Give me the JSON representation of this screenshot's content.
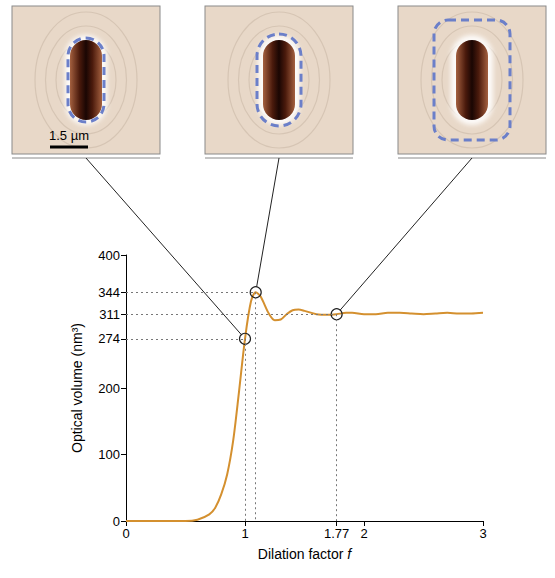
{
  "chart_data": {
    "type": "line",
    "x_label": "Dilation factor f",
    "y_label": "Optical volume (nm³)",
    "x": [
      0,
      0.5,
      0.6,
      0.7,
      0.75,
      0.8,
      0.85,
      0.9,
      0.95,
      1.0,
      1.05,
      1.09,
      1.13,
      1.2,
      1.25,
      1.3,
      1.35,
      1.4,
      1.45,
      1.5,
      1.6,
      1.7,
      1.77,
      1.85,
      1.9,
      2.0,
      2.1,
      2.2,
      2.3,
      2.4,
      2.5,
      2.6,
      2.7,
      2.8,
      2.9,
      3.0
    ],
    "values": [
      0,
      0,
      2,
      10,
      20,
      40,
      70,
      120,
      195,
      274,
      330,
      344,
      338,
      312,
      302,
      303,
      311,
      317,
      318,
      316,
      311,
      310,
      311,
      313,
      313,
      311,
      311,
      313,
      313,
      312,
      311,
      312,
      313,
      312,
      312,
      313
    ],
    "color": "#d4902f",
    "xlim": [
      0,
      3
    ],
    "xticks": [
      0,
      1,
      1.77,
      2,
      3
    ],
    "ylim": [
      0,
      400
    ],
    "yticks": [
      0,
      100,
      200,
      274,
      311,
      344,
      400
    ],
    "grid": false,
    "highlights": {
      "x": [
        1.0,
        1.09,
        1.77
      ],
      "values": [
        274,
        344,
        311
      ]
    },
    "scale_bar_label": "1.5 µm"
  }
}
